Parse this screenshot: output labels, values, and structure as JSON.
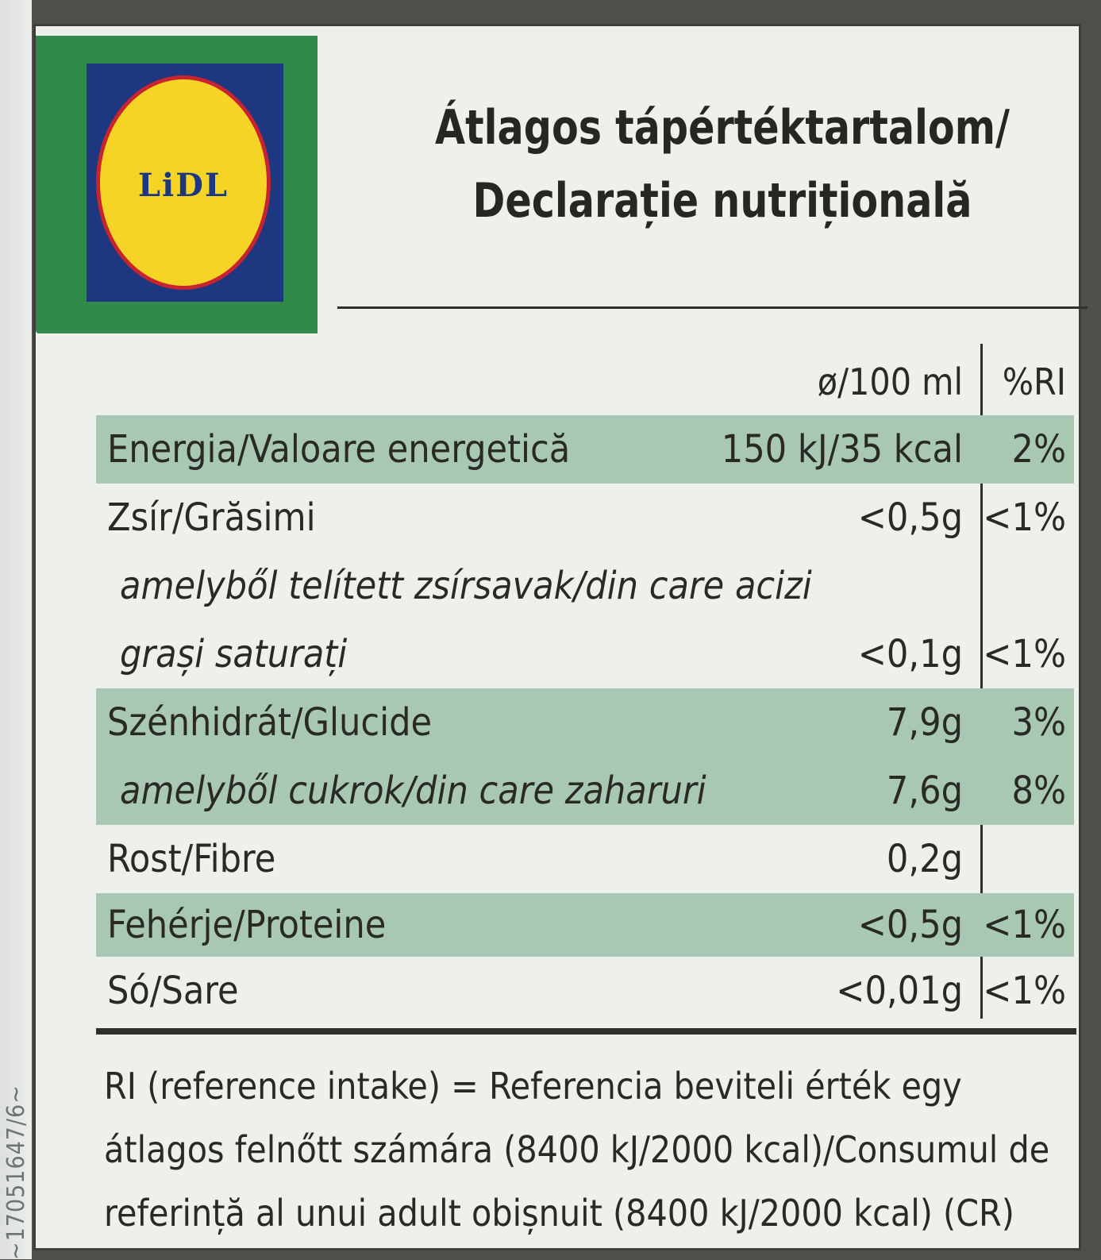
{
  "side_code": "~17051647/6~",
  "logo": {
    "text": "LiDL",
    "colors": {
      "green": "#2f8a4c",
      "blue": "#1d3781",
      "yellow": "#f6d425",
      "red": "#c8242f"
    }
  },
  "title_line1": "Átlagos tápértéktartalom/",
  "title_line2": "Declarație nutrițională",
  "header": {
    "per": "ø/100 ml",
    "ri": "%RI"
  },
  "rows": [
    {
      "name": "Energia/Valoare energetică",
      "value": "150 kJ/35 kcal",
      "ri": "2%",
      "highlight": true
    },
    {
      "name": "Zsír/Grăsimi",
      "value": "<0,5g",
      "ri": "<1%",
      "highlight": false
    },
    {
      "name": "amelyből telített zsírsavak/din care acizi",
      "value": "",
      "ri": "",
      "highlight": false
    },
    {
      "name": "grași saturați",
      "value": "<0,1g",
      "ri": "<1%",
      "highlight": false
    },
    {
      "name": "Szénhidrát/Glucide",
      "value": "7,9g",
      "ri": "3%",
      "highlight": true
    },
    {
      "name": "amelyből cukrok/din care zaharuri",
      "value": "7,6g",
      "ri": "8%",
      "highlight": true
    },
    {
      "name": "Rost/Fibre",
      "value": "0,2g",
      "ri": "",
      "highlight": false
    },
    {
      "name": "Fehérje/Proteine",
      "value": "<0,5g",
      "ri": "<1%",
      "highlight": true
    },
    {
      "name": "Só/Sare",
      "value": "<0,01g",
      "ri": "<1%",
      "highlight": false
    }
  ],
  "footnote_lines": [
    "RI (reference intake) = Referencia beviteli érték egy",
    "átlagos felnőtt számára (8400 kJ/2000 kcal)/Consumul de",
    "referință al unui adult obișnuit (8400 kJ/2000 kcal) (CR)"
  ]
}
